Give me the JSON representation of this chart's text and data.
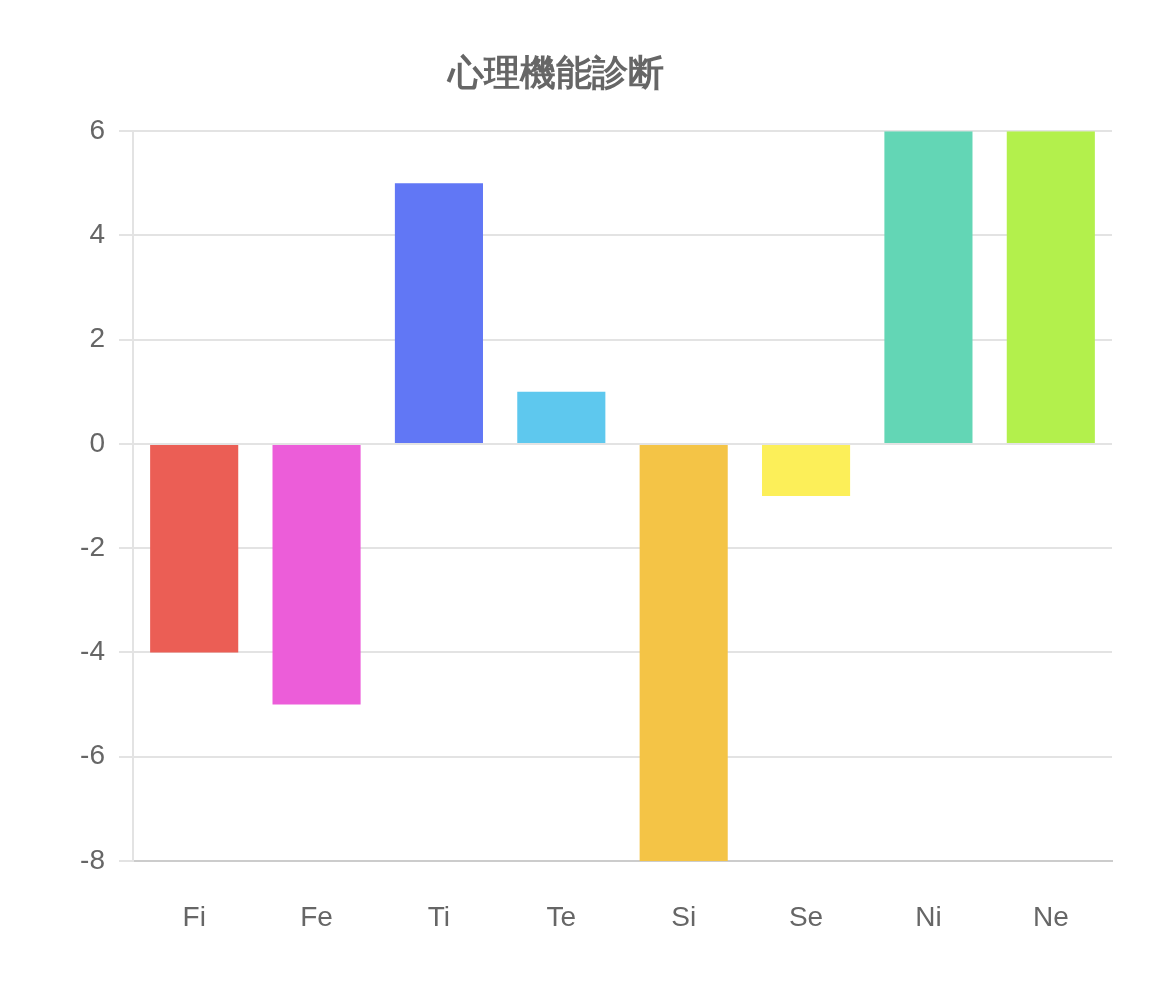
{
  "chart_data": {
    "type": "bar",
    "title": "心理機能診断",
    "categories": [
      "Fi",
      "Fe",
      "Ti",
      "Te",
      "Si",
      "Se",
      "Ni",
      "Ne"
    ],
    "values": [
      -4,
      -5,
      5,
      1,
      -8,
      -1,
      6,
      6
    ],
    "colors": [
      "#eb5e55",
      "#ec5dd9",
      "#6177f5",
      "#5ec8ee",
      "#f4c446",
      "#fcef59",
      "#63d6b5",
      "#b3f04c"
    ],
    "ylim": [
      -8,
      6
    ],
    "yticks": [
      -8,
      -6,
      -4,
      -2,
      0,
      2,
      4,
      6
    ],
    "grid": "y",
    "legend": false
  }
}
